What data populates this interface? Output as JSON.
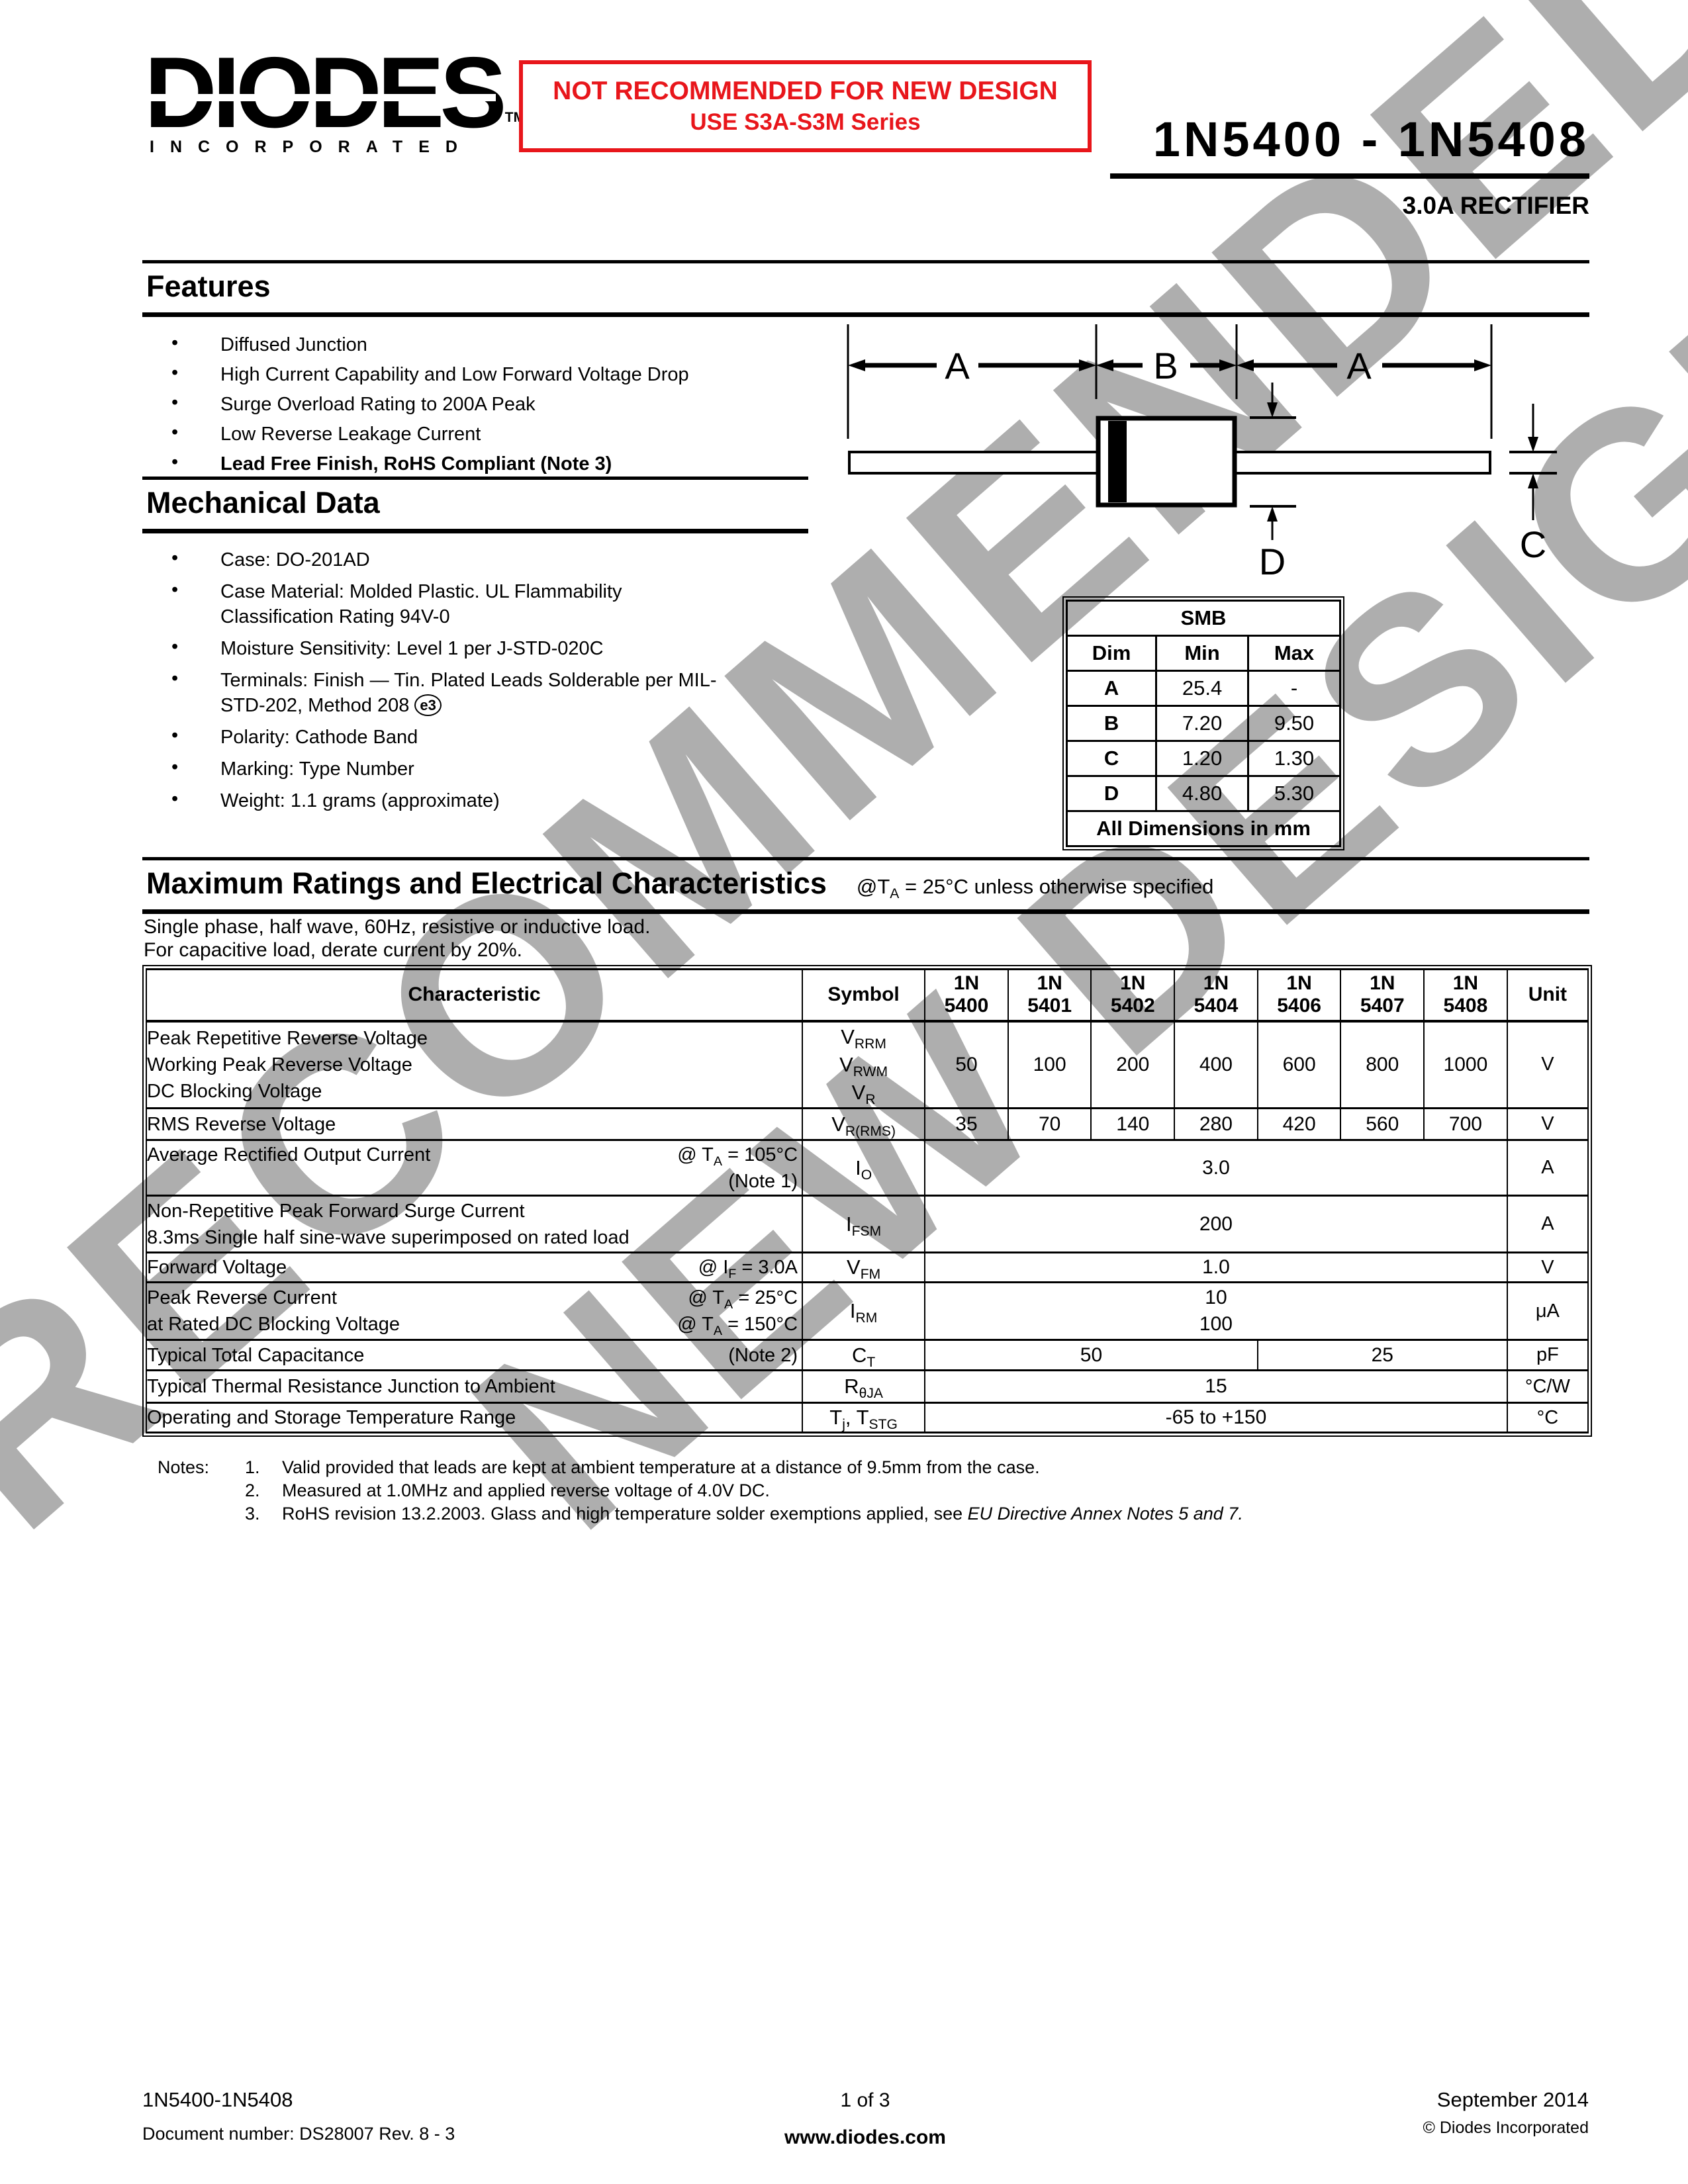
{
  "watermark": {
    "line1": "RECOMMENDED",
    "line2": "NEW DESIGN",
    "color": "#aeaeae"
  },
  "header": {
    "logo_brand": "DIODES",
    "logo_tm": "TM",
    "logo_sub": "INCORPORATED",
    "warning_line1": "NOT RECOMMENDED FOR NEW DESIGN",
    "warning_line2": "USE S3A-S3M Series",
    "warning_color": "#e8161b",
    "part_range": "1N5400 - 1N5408",
    "subtitle": "3.0A RECTIFIER"
  },
  "features": {
    "title": "Features",
    "items": [
      {
        "text": "Diffused Junction"
      },
      {
        "text": "High Current Capability and Low Forward Voltage Drop"
      },
      {
        "text": "Surge Overload Rating to 200A Peak"
      },
      {
        "text": "Low Reverse Leakage Current"
      },
      {
        "text": "Lead Free Finish, RoHS Compliant (Note 3)",
        "bold": true
      }
    ]
  },
  "mechanical": {
    "title": "Mechanical Data",
    "items": [
      {
        "lines": [
          "Case: DO-201AD"
        ]
      },
      {
        "lines": [
          "Case Material: Molded Plastic.  UL Flammability",
          "Classification Rating 94V-0"
        ]
      },
      {
        "lines": [
          "Moisture Sensitivity:  Level 1 per J-STD-020C"
        ]
      },
      {
        "lines": [
          "Terminals: Finish — Tin. Plated Leads Solderable per MIL-",
          "STD-202, Method 208 {e3}"
        ]
      },
      {
        "lines": [
          "Polarity: Cathode Band"
        ]
      },
      {
        "lines": [
          "Marking: Type Number"
        ]
      },
      {
        "lines": [
          "Weight:  1.1 grams (approximate)"
        ]
      }
    ]
  },
  "package_diagram": {
    "labels": {
      "a_left": "A",
      "b": "B",
      "a_right": "A",
      "c": "C",
      "d": "D"
    }
  },
  "smb_table": {
    "title": "SMB",
    "columns": [
      "Dim",
      "Min",
      "Max"
    ],
    "rows": [
      [
        "A",
        "25.4",
        "-"
      ],
      [
        "B",
        "7.20",
        "9.50"
      ],
      [
        "C",
        "1.20",
        "1.30"
      ],
      [
        "D",
        "4.80",
        "5.30"
      ]
    ],
    "footer": "All Dimensions in mm"
  },
  "ratings": {
    "title": "Maximum Ratings and Electrical Characteristics",
    "condition": "@T~A~ = 25°C unless otherwise specified",
    "description": [
      "Single phase, half wave, 60Hz, resistive or inductive load.",
      "For capacitive load, derate current by 20%."
    ],
    "columns": {
      "characteristic": "Characteristic",
      "symbol": "Symbol",
      "parts": [
        [
          "1N",
          "5400"
        ],
        [
          "1N",
          "5401"
        ],
        [
          "1N",
          "5402"
        ],
        [
          "1N",
          "5404"
        ],
        [
          "1N",
          "5406"
        ],
        [
          "1N",
          "5407"
        ],
        [
          "1N",
          "5408"
        ]
      ],
      "unit": "Unit"
    },
    "rows": [
      {
        "height": 132,
        "characteristic": [
          {
            "l": "Peak Repetitive Reverse Voltage"
          },
          {
            "l": "Working Peak Reverse Voltage"
          },
          {
            "l": "DC Blocking Voltage"
          }
        ],
        "symbol": [
          "V~RRM~",
          "V~RWM~",
          "V~R~"
        ],
        "values": {
          "type": "per_column",
          "cells": [
            "50",
            "100",
            "200",
            "400",
            "600",
            "800",
            "1000"
          ]
        },
        "unit": "V"
      },
      {
        "height": 48,
        "characteristic": [
          {
            "l": "RMS Reverse Voltage"
          }
        ],
        "symbol": [
          "V~R(RMS)~"
        ],
        "values": {
          "type": "per_column",
          "cells": [
            "35",
            "70",
            "140",
            "280",
            "420",
            "560",
            "700"
          ]
        },
        "unit": "V"
      },
      {
        "height": 84,
        "characteristic": [
          {
            "l": "Average Rectified Output Current",
            "r": "@ T~A~ = 105°C"
          },
          {
            "l": "",
            "r": "(Note 1)"
          }
        ],
        "symbol": [
          "I~O~"
        ],
        "values": {
          "type": "span",
          "text": "3.0"
        },
        "unit": "A"
      },
      {
        "height": 86,
        "characteristic": [
          {
            "l": "Non-Repetitive Peak Forward Surge Current"
          },
          {
            "l": "8.3ms Single half sine-wave superimposed on rated load"
          }
        ],
        "symbol": [
          "I~FSM~"
        ],
        "values": {
          "type": "span",
          "text": "200"
        },
        "unit": "A"
      },
      {
        "height": 44,
        "characteristic": [
          {
            "l": "Forward Voltage",
            "r": "@ I~F~ = 3.0A"
          }
        ],
        "symbol": [
          "V~FM~"
        ],
        "values": {
          "type": "span",
          "text": "1.0"
        },
        "unit": "V"
      },
      {
        "height": 87,
        "characteristic": [
          {
            "l": "Peak Reverse Current",
            "r": "@ T~A~ =  25°C"
          },
          {
            "l": "at Rated DC Blocking Voltage",
            "r": "@ T~A~ = 150°C"
          }
        ],
        "symbol": [
          "I~RM~"
        ],
        "values": {
          "type": "span2",
          "lines": [
            "10",
            "100"
          ]
        },
        "unit": "μA"
      },
      {
        "height": 46,
        "characteristic": [
          {
            "l": "Typical Total Capacitance",
            "r": "(Note 2)"
          }
        ],
        "symbol": [
          "C~T~"
        ],
        "values": {
          "type": "split",
          "left": "50",
          "left_span": 4,
          "right": "25",
          "right_span": 3
        },
        "unit": "pF"
      },
      {
        "height": 49,
        "characteristic": [
          {
            "l": "Typical Thermal Resistance Junction to Ambient"
          }
        ],
        "symbol": [
          "R~θJA~"
        ],
        "values": {
          "type": "span",
          "text": "15"
        },
        "unit": "°C/W"
      },
      {
        "height": 45,
        "characteristic": [
          {
            "l": "Operating and Storage Temperature Range"
          }
        ],
        "symbol": [
          "T~j~, T~STG~"
        ],
        "values": {
          "type": "span",
          "text": "-65 to +150"
        },
        "unit": "°C"
      }
    ]
  },
  "notes": {
    "label": "Notes:",
    "items": [
      {
        "num": "1.",
        "text": "Valid provided that leads are kept at ambient temperature at a distance of 9.5mm from the case."
      },
      {
        "num": "2.",
        "text": "Measured at 1.0MHz and applied reverse voltage of 4.0V DC."
      },
      {
        "num": "3.",
        "text": "RoHS revision 13.2.2003.  Glass and high temperature solder exemptions applied, see *EU Directive Annex Notes 5 and 7.*"
      }
    ]
  },
  "footer": {
    "part_range": "1N5400-1N5408",
    "doc_number": "Document number: DS28007  Rev. 8 - 3",
    "page": "1 of 3",
    "website": "www.diodes.com",
    "date": "September 2014",
    "copyright": "© Diodes Incorporated"
  }
}
